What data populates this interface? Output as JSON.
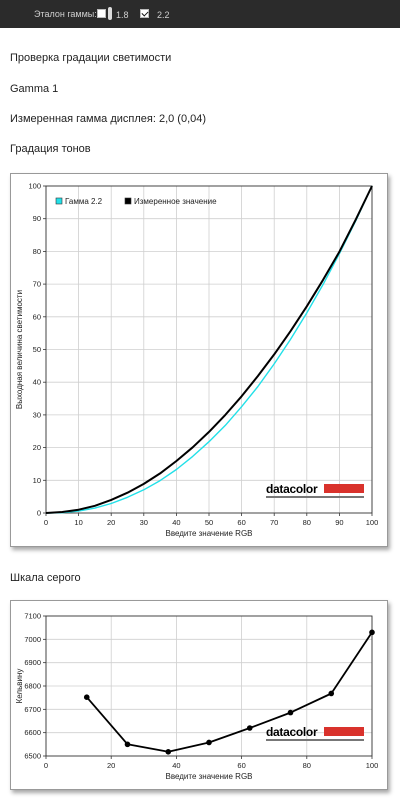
{
  "toolbar": {
    "label": "Эталон гаммы:",
    "option_1": {
      "value": "1.8",
      "checked": false
    },
    "option_2": {
      "value": "2.2",
      "checked": true
    }
  },
  "headings": {
    "check": "Проверка градации светимости",
    "gamma": "Gamma 1",
    "measured": "Измеренная гамма дисплея: 2,0 (0,04)",
    "tone": "Градация тонов",
    "gray": "Шкала серого"
  },
  "logo": "datacolor",
  "colors": {
    "ideal": "#22e0e8",
    "measured": "#000000",
    "logo_bar": "#d9322c"
  },
  "chart_data": [
    {
      "type": "line",
      "xlabel": "Введите значение RGB",
      "ylabel": "Выходная величина светимости",
      "xlim": [
        0,
        100
      ],
      "ylim": [
        0,
        100
      ],
      "xticks": [
        0,
        10,
        20,
        30,
        40,
        50,
        60,
        70,
        80,
        90,
        100
      ],
      "yticks": [
        0,
        10,
        20,
        30,
        40,
        50,
        60,
        70,
        80,
        90,
        100
      ],
      "grid": true,
      "legend": "top-left",
      "series": [
        {
          "name": "Гамма 2.2",
          "color": "#22e0e8",
          "x": [
            0,
            5,
            10,
            15,
            20,
            25,
            30,
            35,
            40,
            45,
            50,
            55,
            60,
            65,
            70,
            75,
            80,
            85,
            90,
            95,
            100
          ],
          "y": [
            0,
            0.1,
            0.6,
            1.5,
            2.9,
            4.8,
            7.1,
            9.9,
            13.3,
            17.3,
            21.8,
            26.8,
            32.5,
            38.7,
            45.6,
            53.1,
            61.2,
            69.9,
            79.3,
            89.3,
            100
          ]
        },
        {
          "name": "Измеренное значение",
          "color": "#000000",
          "x": [
            0,
            5,
            10,
            15,
            20,
            25,
            30,
            35,
            40,
            45,
            50,
            55,
            60,
            65,
            70,
            75,
            80,
            85,
            90,
            95,
            100
          ],
          "y": [
            0,
            0.3,
            1.0,
            2.2,
            4.0,
            6.2,
            8.9,
            12.1,
            15.9,
            20.1,
            24.8,
            30.0,
            35.7,
            41.9,
            48.5,
            55.6,
            63.2,
            71.3,
            79.9,
            89.7,
            100
          ]
        }
      ]
    },
    {
      "type": "line",
      "xlabel": "Введите значение RGB",
      "ylabel": "Кельвину",
      "xlim": [
        0,
        100
      ],
      "ylim": [
        6500,
        7100
      ],
      "xticks": [
        0,
        20,
        40,
        60,
        80,
        100
      ],
      "yticks": [
        6500,
        6600,
        6700,
        6800,
        6900,
        7000,
        7100
      ],
      "grid": true,
      "series": [
        {
          "name": "",
          "color": "#000000",
          "x": [
            12.5,
            25,
            37.5,
            50,
            62.5,
            75,
            87.5,
            100
          ],
          "y": [
            6752,
            6550,
            6518,
            6558,
            6620,
            6686,
            6768,
            7030
          ]
        }
      ]
    }
  ]
}
